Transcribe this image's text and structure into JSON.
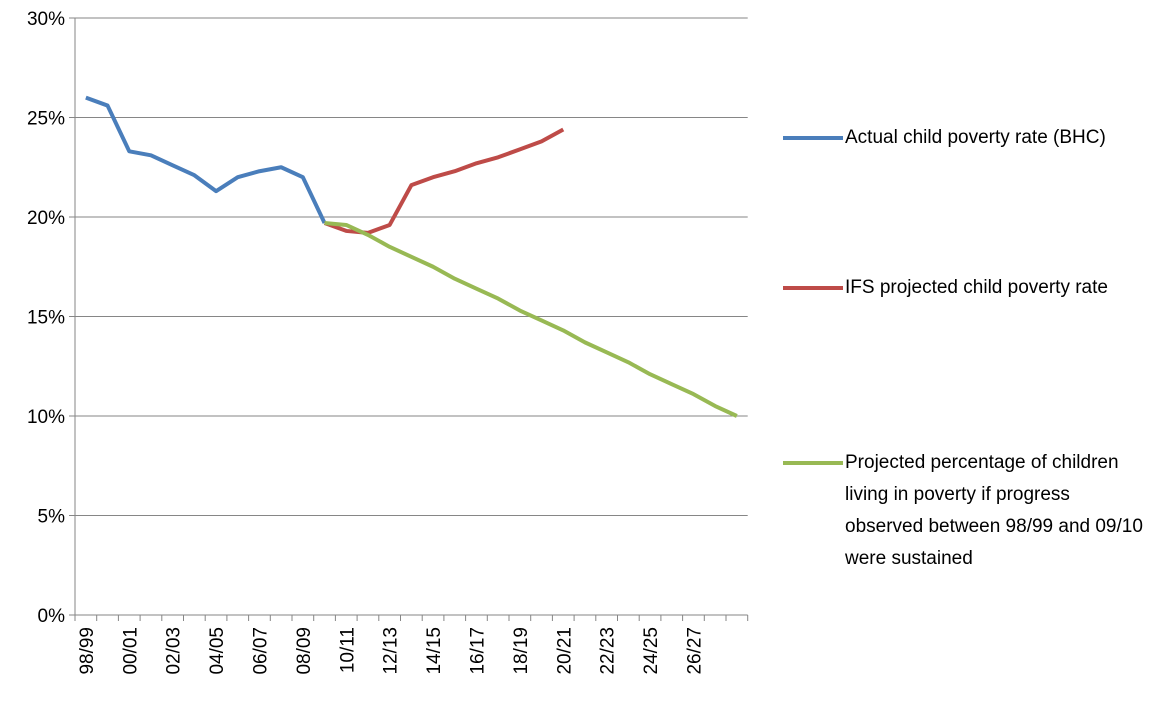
{
  "chart_data": {
    "type": "line",
    "categories": [
      "98/99",
      null,
      "00/01",
      null,
      "02/03",
      null,
      "04/05",
      null,
      "06/07",
      null,
      "08/09",
      null,
      "10/11",
      null,
      "12/13",
      null,
      "14/15",
      null,
      "16/17",
      null,
      "18/19",
      null,
      "20/21",
      null,
      "22/23",
      null,
      "24/25",
      null,
      "26/27",
      null,
      null
    ],
    "series": [
      {
        "name": "Actual child poverty rate (BHC)",
        "color": "#4a7ebb",
        "values": [
          26.0,
          25.6,
          23.3,
          23.1,
          22.6,
          22.1,
          21.3,
          22.0,
          22.3,
          22.5,
          22.0,
          19.7,
          null,
          null,
          null,
          null,
          null,
          null,
          null,
          null,
          null,
          null,
          null,
          null,
          null,
          null,
          null,
          null,
          null,
          null,
          null
        ]
      },
      {
        "name": "IFS projected child poverty rate",
        "color": "#be4b48",
        "values": [
          null,
          null,
          null,
          null,
          null,
          null,
          null,
          null,
          null,
          null,
          null,
          19.7,
          19.3,
          19.2,
          19.6,
          21.6,
          22.0,
          22.3,
          22.7,
          23.0,
          23.4,
          23.8,
          24.4,
          null,
          null,
          null,
          null,
          null,
          null,
          null,
          null
        ]
      },
      {
        "name": "Projected percentage of children living in poverty if progress observed between 98/99 and 09/10 were sustained",
        "color": "#98b954",
        "values": [
          null,
          null,
          null,
          null,
          null,
          null,
          null,
          null,
          null,
          null,
          null,
          19.7,
          19.6,
          19.1,
          18.5,
          18.0,
          17.5,
          16.9,
          16.4,
          15.9,
          15.3,
          14.8,
          14.3,
          13.7,
          13.2,
          12.7,
          12.1,
          11.6,
          11.1,
          10.5,
          10.0
        ]
      }
    ],
    "ylim": [
      0,
      30
    ],
    "yticks": [
      {
        "value": 0,
        "label": "0%"
      },
      {
        "value": 5,
        "label": "5%"
      },
      {
        "value": 10,
        "label": "10%"
      },
      {
        "value": 15,
        "label": "15%"
      },
      {
        "value": 20,
        "label": "20%"
      },
      {
        "value": 25,
        "label": "25%"
      },
      {
        "value": 30,
        "label": "30%"
      }
    ],
    "grid": true,
    "legend": "right"
  }
}
